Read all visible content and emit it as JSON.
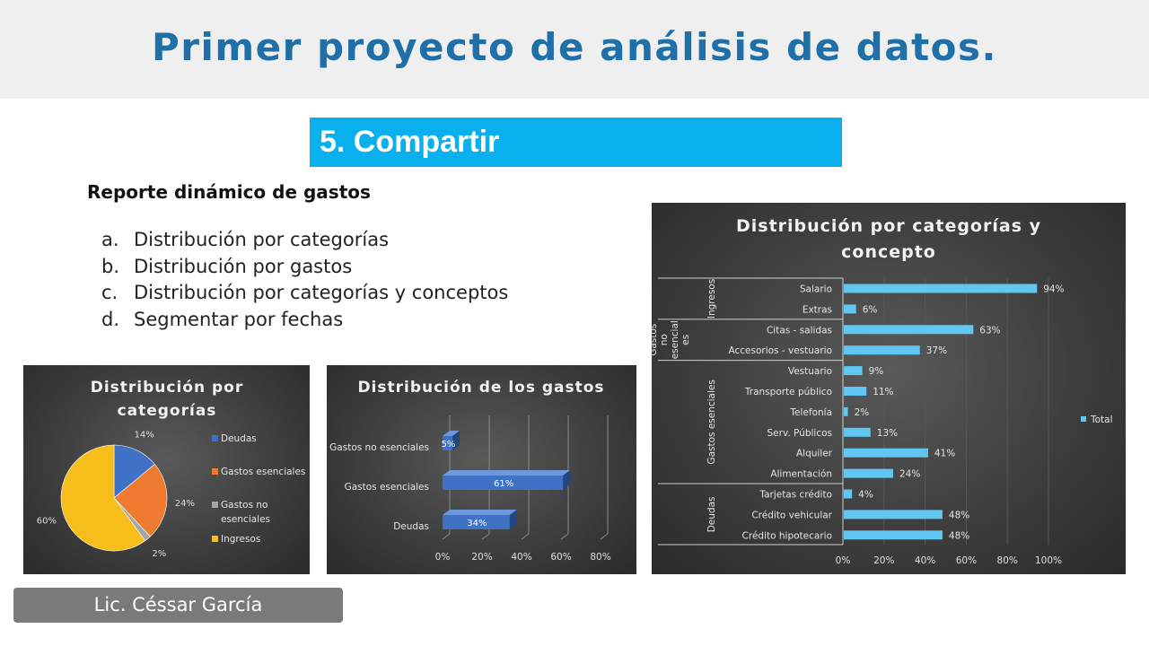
{
  "slide": {
    "title": "Primer proyecto de análisis de datos.",
    "section": "5. Compartir",
    "report_title": "Reporte dinámico de gastos",
    "list": [
      {
        "marker": "a.",
        "text": "Distribución por categorías"
      },
      {
        "marker": "b.",
        "text": "Distribución por gastos"
      },
      {
        "marker": "c.",
        "text": "Distribución por categorías y conceptos"
      },
      {
        "marker": "d.",
        "text": "Segmentar por fechas"
      }
    ],
    "author": "Lic. Céssar García"
  },
  "colors": {
    "title": "#1f6fa8",
    "section_bar": "#0ab0ee",
    "author_box": "#7a7a7a",
    "pie": [
      "#3f72c7",
      "#ee7b30",
      "#a5a5a5",
      "#f7bd1a"
    ],
    "bar_blue": "#3f72c7",
    "bar_light": "#5fc7f2"
  },
  "chart_data": [
    {
      "type": "pie",
      "title_lines": [
        "Distribución por",
        "categorías"
      ],
      "categories": [
        "Deudas",
        "Gastos esenciales",
        "Gastos no esenciales",
        "Ingresos"
      ],
      "values": [
        14,
        24,
        2,
        60
      ],
      "labels": [
        "14%",
        "24%",
        "2%",
        "60%"
      ],
      "legend": "right"
    },
    {
      "type": "bar",
      "orientation": "horizontal",
      "title": "Distribución de los gastos",
      "categories": [
        "Deudas",
        "Gastos esenciales",
        "Gastos no esenciales"
      ],
      "values": [
        34,
        61,
        5
      ],
      "labels": [
        "34%",
        "61%",
        "5%"
      ],
      "xlim": [
        0,
        80
      ],
      "xticks": [
        "0%",
        "20%",
        "40%",
        "60%",
        "80%"
      ],
      "grid": true
    },
    {
      "type": "bar",
      "orientation": "horizontal",
      "title_lines": [
        "Distribución por categorías y",
        "concepto"
      ],
      "groups": [
        {
          "name": "Ingresos",
          "label_lines": [
            "Ingresos"
          ],
          "items": [
            {
              "label": "Salario",
              "value": 94
            },
            {
              "label": "Extras",
              "value": 6
            }
          ]
        },
        {
          "name": "Gastos no esenciales",
          "label_lines": [
            "Gastos",
            "no",
            "esencial",
            "es"
          ],
          "items": [
            {
              "label": "Citas - salidas",
              "value": 63
            },
            {
              "label": "Accesorios - vestuario",
              "value": 37
            }
          ]
        },
        {
          "name": "Gastos esenciales",
          "label_lines": [
            "Gastos esenciales"
          ],
          "items": [
            {
              "label": "Vestuario",
              "value": 9
            },
            {
              "label": "Transporte público",
              "value": 11
            },
            {
              "label": "Telefonía",
              "value": 2
            },
            {
              "label": "Serv. Públicos",
              "value": 13
            },
            {
              "label": "Alquiler",
              "value": 41
            },
            {
              "label": "Alimentación",
              "value": 24
            }
          ]
        },
        {
          "name": "Deudas",
          "label_lines": [
            "Deudas"
          ],
          "items": [
            {
              "label": "Tarjetas crédito",
              "value": 4
            },
            {
              "label": "Crédito vehicular",
              "value": 48
            },
            {
              "label": "Crédito hipotecario",
              "value": 48
            }
          ]
        }
      ],
      "xlim": [
        0,
        100
      ],
      "xticks": [
        "0%",
        "20%",
        "40%",
        "60%",
        "80%",
        "100%"
      ],
      "legend": {
        "label": "Total",
        "position": "right"
      },
      "grid": true
    }
  ]
}
